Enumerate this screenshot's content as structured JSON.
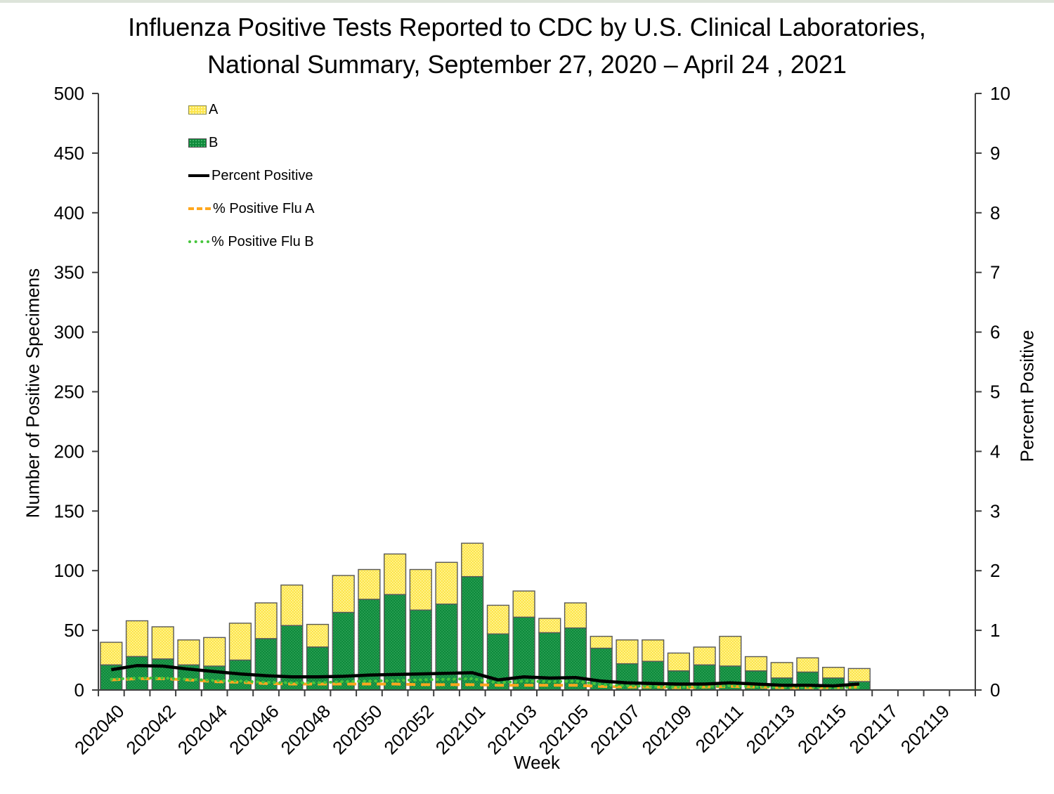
{
  "title": {
    "line1": "Influenza Positive Tests Reported to CDC by U.S. Clinical Laboratories,",
    "line2": "National Summary, September 27, 2020 – April 24 , 2021"
  },
  "legend": {
    "items": [
      {
        "label": "A",
        "swatch": "yellow-pattern-box"
      },
      {
        "label": "B",
        "swatch": "green-pattern-box"
      },
      {
        "label": "Percent Positive",
        "swatch": "black-solid-line"
      },
      {
        "label": "% Positive Flu A",
        "swatch": "orange-dashed-line"
      },
      {
        "label": "% Positive Flu B",
        "swatch": "green-dotted-line"
      }
    ]
  },
  "colors": {
    "flu_a_bar": "#fde54b",
    "flu_a_bar_light": "#fff7ab",
    "flu_b_bar": "#0e8a3b",
    "flu_b_bar_light": "#4db873",
    "percent_positive_line": "#000000",
    "pct_flu_a_line": "#ffa71e",
    "pct_flu_b_line": "#46c53c",
    "axis": "#404040",
    "bar_stroke": "#595959"
  },
  "chart_data": {
    "type": "bar",
    "subtype": "stacked-bars-with-percent-lines",
    "title": "Influenza Positive Tests Reported to CDC by U.S. Clinical Laboratories, National Summary, September 27, 2020 – April 24 , 2021",
    "xlabel": "Week",
    "ylabel_left": "Number of Positive Specimens",
    "ylabel_right": "Percent Positive",
    "ylim_left": [
      0,
      500
    ],
    "ylim_right": [
      0,
      10
    ],
    "left_ticks": [
      0,
      50,
      100,
      150,
      200,
      250,
      300,
      350,
      400,
      450,
      500
    ],
    "right_ticks": [
      0,
      1,
      2,
      3,
      4,
      5,
      6,
      7,
      8,
      9,
      10
    ],
    "x_tick_labels": [
      "202040",
      "202042",
      "202044",
      "202046",
      "202048",
      "202050",
      "202052",
      "202101",
      "202103",
      "202105",
      "202107",
      "202109",
      "202111",
      "202113",
      "202115",
      "202117",
      "202119"
    ],
    "x_total_slots": 34,
    "grid": false,
    "legend_position": "inside-top-left",
    "x": [
      "202040",
      "202041",
      "202042",
      "202043",
      "202044",
      "202045",
      "202046",
      "202047",
      "202048",
      "202049",
      "202050",
      "202051",
      "202052",
      "202053",
      "202101",
      "202102",
      "202103",
      "202104",
      "202105",
      "202106",
      "202107",
      "202108",
      "202109",
      "202110",
      "202111",
      "202112",
      "202113",
      "202114",
      "202115",
      "202116"
    ],
    "series": [
      {
        "name": "A",
        "type": "bar",
        "stack": "top",
        "axis": "left",
        "values": [
          19,
          30,
          27,
          21,
          24,
          31,
          30,
          34,
          19,
          31,
          25,
          34,
          34,
          35,
          28,
          24,
          22,
          12,
          21,
          10,
          20,
          18,
          15,
          15,
          25,
          12,
          13,
          12,
          9,
          11
        ]
      },
      {
        "name": "B",
        "type": "bar",
        "stack": "bottom",
        "axis": "left",
        "values": [
          21,
          28,
          26,
          21,
          20,
          25,
          43,
          54,
          36,
          65,
          76,
          80,
          67,
          72,
          95,
          47,
          61,
          48,
          52,
          35,
          22,
          24,
          16,
          21,
          20,
          16,
          10,
          15,
          10,
          7
        ]
      },
      {
        "name": "Percent Positive",
        "type": "line",
        "style": "solid",
        "axis": "right",
        "values": [
          0.34,
          0.41,
          0.4,
          0.35,
          0.31,
          0.27,
          0.24,
          0.22,
          0.22,
          0.23,
          0.25,
          0.26,
          0.27,
          0.28,
          0.29,
          0.17,
          0.22,
          0.2,
          0.21,
          0.15,
          0.12,
          0.11,
          0.1,
          0.1,
          0.12,
          0.1,
          0.08,
          0.08,
          0.07,
          0.1
        ]
      },
      {
        "name": "% Positive Flu A",
        "type": "line",
        "style": "dashed",
        "axis": "right",
        "values": [
          0.17,
          0.19,
          0.19,
          0.17,
          0.14,
          0.13,
          0.11,
          0.1,
          0.1,
          0.1,
          0.1,
          0.1,
          0.09,
          0.09,
          0.09,
          0.08,
          0.08,
          0.08,
          0.08,
          0.06,
          0.05,
          0.05,
          0.04,
          0.05,
          0.06,
          0.05,
          0.04,
          0.04,
          0.04,
          0.05
        ]
      },
      {
        "name": "% Positive Flu B",
        "type": "line",
        "style": "dotted",
        "axis": "right",
        "values": [
          0.18,
          0.2,
          0.2,
          0.18,
          0.16,
          0.15,
          0.13,
          0.12,
          0.12,
          0.14,
          0.15,
          0.16,
          0.17,
          0.18,
          0.19,
          0.12,
          0.15,
          0.14,
          0.15,
          0.09,
          0.07,
          0.06,
          0.05,
          0.06,
          0.07,
          0.06,
          0.05,
          0.05,
          0.04,
          0.05
        ]
      }
    ]
  }
}
